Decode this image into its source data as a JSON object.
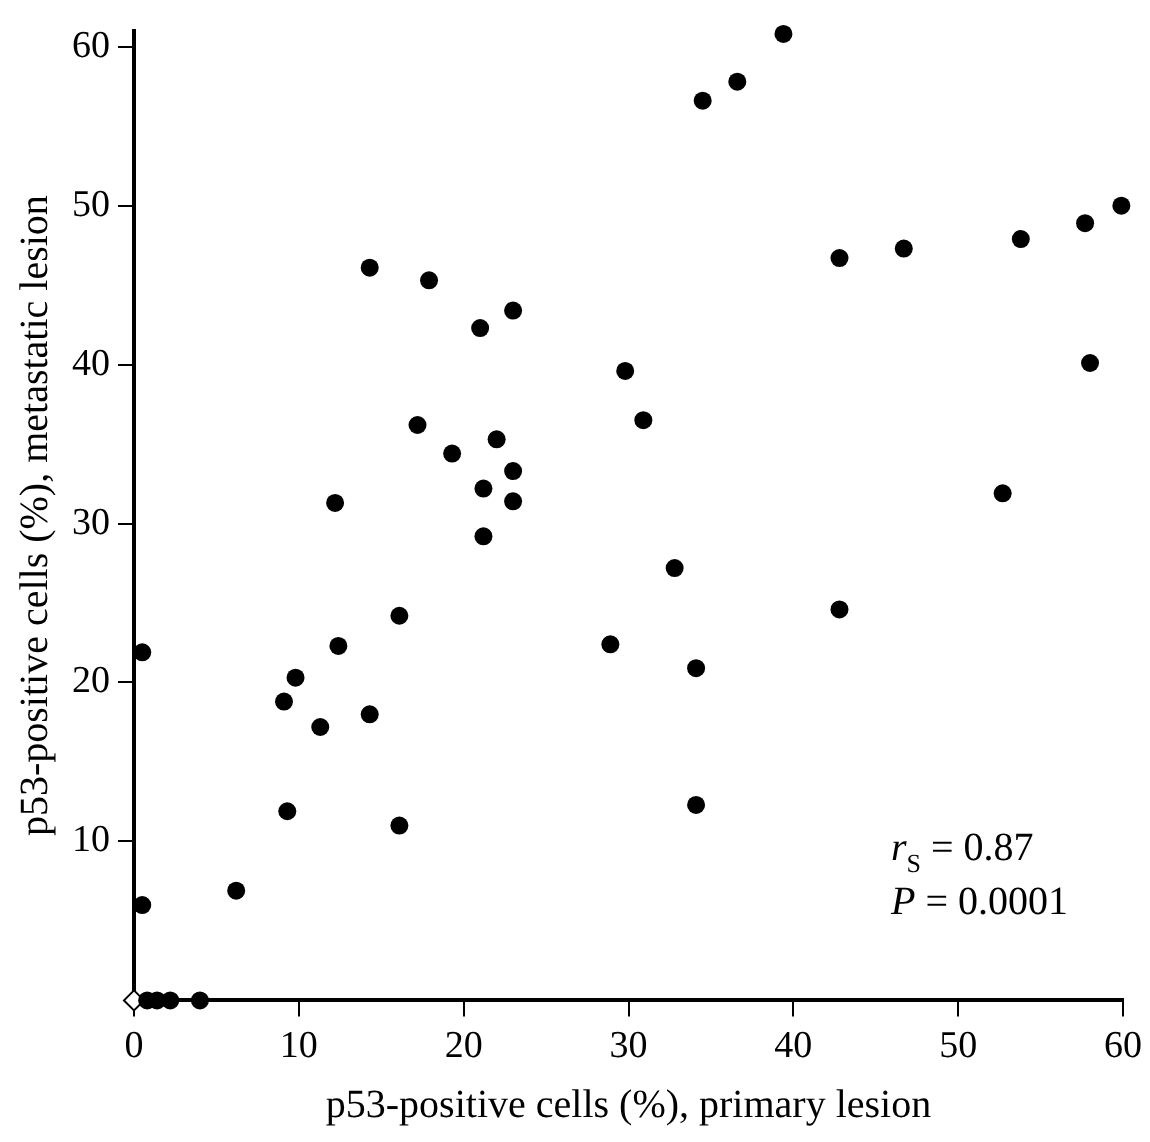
{
  "chart_data": {
    "type": "scatter",
    "xlabel": "p53-positive cells (%), primary lesion",
    "ylabel": "p53-positive cells (%), metastatic lesion",
    "xlim": [
      0,
      60
    ],
    "xticks": [
      0,
      10,
      20,
      30,
      40,
      50,
      60
    ],
    "ylim": [
      0,
      61
    ],
    "yticks": [
      10,
      20,
      30,
      40,
      50,
      60
    ],
    "grid": false,
    "legend": false,
    "marker": "circle",
    "annotations": [
      "r$_{S}$ = 0.87",
      "P = 0.0001"
    ],
    "series": [
      {
        "color": "#000000",
        "x": [
          14.3,
          17.9,
          21.0,
          23.0,
          29.8,
          17.2,
          19.3,
          22.0,
          23.0,
          21.2,
          23.0,
          12.2,
          39.4,
          36.6,
          34.5,
          42.8,
          46.7,
          53.8,
          57.7,
          59.9,
          30.9,
          58.0,
          52.7,
          21.2,
          16.1,
          12.4,
          28.9,
          0.5,
          9.8,
          9.1,
          11.3,
          14.3,
          9.3,
          16.1,
          6.2,
          0.5,
          0.8,
          1.4,
          2.2,
          4.0,
          32.8,
          42.8,
          34.1,
          34.1
        ],
        "values": [
          46.1,
          45.3,
          42.3,
          43.4,
          39.6,
          36.2,
          34.4,
          35.3,
          33.3,
          32.2,
          31.4,
          31.3,
          60.8,
          57.8,
          56.6,
          46.7,
          47.3,
          47.9,
          48.9,
          50.0,
          36.5,
          40.1,
          31.9,
          29.2,
          24.2,
          22.3,
          22.4,
          21.9,
          20.3,
          18.8,
          17.2,
          18.0,
          11.9,
          11.0,
          6.9,
          6.0,
          0,
          0,
          0,
          0,
          27.2,
          24.6,
          20.9,
          12.3
        ]
      },
      {
        "color": "#000000",
        "marker": "diamond",
        "x": [
          0
        ],
        "values": [
          0
        ]
      }
    ]
  }
}
